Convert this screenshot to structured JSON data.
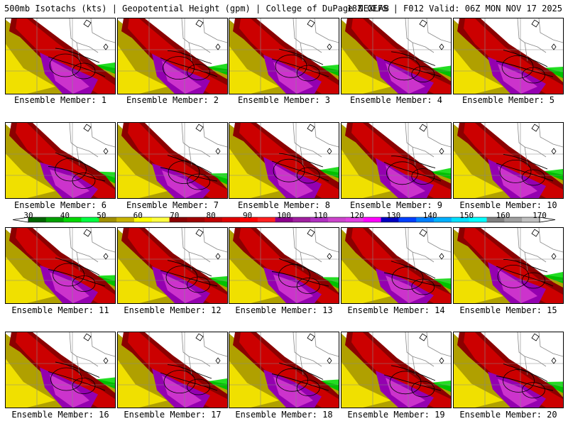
{
  "header": {
    "left_title": "500mb Isotachs (kts) | Geopotential Height (gpm) | College of DuPage NEXLAB",
    "right_title": "18Z GEFS | F012 Valid: 06Z MON NOV 17 2025"
  },
  "members": [
    {
      "label": "Ensemble Member: 1"
    },
    {
      "label": "Ensemble Member: 2"
    },
    {
      "label": "Ensemble Member: 3"
    },
    {
      "label": "Ensemble Member: 4"
    },
    {
      "label": "Ensemble Member: 5"
    },
    {
      "label": "Ensemble Member: 6"
    },
    {
      "label": "Ensemble Member: 7"
    },
    {
      "label": "Ensemble Member: 8"
    },
    {
      "label": "Ensemble Member: 9"
    },
    {
      "label": "Ensemble Member: 10"
    },
    {
      "label": "Ensemble Member: 11"
    },
    {
      "label": "Ensemble Member: 12"
    },
    {
      "label": "Ensemble Member: 13"
    },
    {
      "label": "Ensemble Member: 14"
    },
    {
      "label": "Ensemble Member: 15"
    },
    {
      "label": "Ensemble Member: 16"
    },
    {
      "label": "Ensemble Member: 17"
    },
    {
      "label": "Ensemble Member: 18"
    },
    {
      "label": "Ensemble Member: 19"
    },
    {
      "label": "Ensemble Member: 20"
    }
  ],
  "colorbar": {
    "tick_labels": [
      "30",
      "40",
      "50",
      "60",
      "70",
      "80",
      "90",
      "100",
      "110",
      "120",
      "130",
      "140",
      "150",
      "160",
      "170"
    ],
    "colors": [
      "#006400",
      "#00a000",
      "#00d800",
      "#00ff40",
      "#a09000",
      "#c8b400",
      "#ffff00",
      "#ffff40",
      "#8b0000",
      "#a00000",
      "#c00000",
      "#e00000",
      "#ff0000",
      "#ff2020",
      "#8b008b",
      "#a020a0",
      "#b030c0",
      "#cc44cc",
      "#e040e0",
      "#ff00ff",
      "#0000c0",
      "#0040ff",
      "#0080ff",
      "#00b0ff",
      "#00e0ff",
      "#00ffff",
      "#808080",
      "#a0a0a0",
      "#c0c0c0"
    ]
  },
  "map_colors": {
    "dark_green": "#008000",
    "green": "#00c000",
    "light_green": "#22dd22",
    "olive": "#b0a000",
    "yellow": "#f0e000",
    "dark_red": "#8b0000",
    "red": "#cc0000",
    "purple": "#9400b0",
    "magenta": "#cc33cc",
    "border": "#888888",
    "contour": "#000000"
  }
}
